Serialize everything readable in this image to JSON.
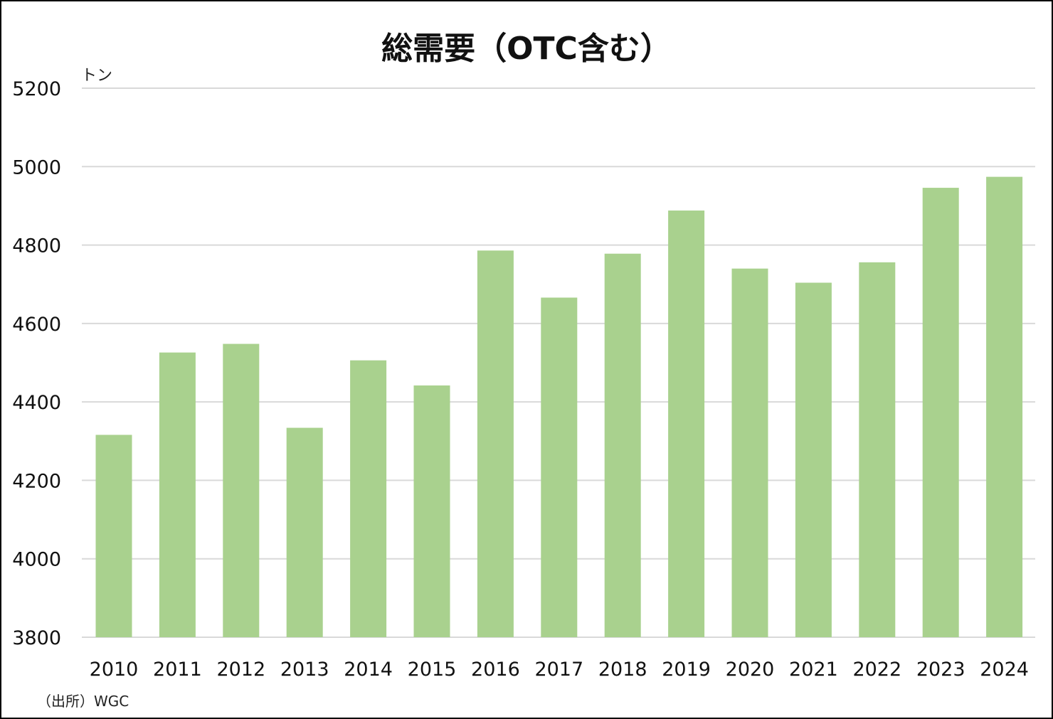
{
  "chart_data": {
    "type": "bar",
    "title": "総需要（OTC含む）",
    "ylabel": "トン",
    "xlabel": "",
    "source": "（出所）WGC",
    "categories": [
      "2010",
      "2011",
      "2012",
      "2013",
      "2014",
      "2015",
      "2016",
      "2017",
      "2018",
      "2019",
      "2020",
      "2021",
      "2022",
      "2023",
      "2024"
    ],
    "values": [
      4316,
      4526,
      4548,
      4334,
      4506,
      4442,
      4786,
      4666,
      4778,
      4888,
      4740,
      4704,
      4756,
      4946,
      4974
    ],
    "ylim": [
      3800,
      5200
    ],
    "yticks": [
      3800,
      4000,
      4200,
      4400,
      4600,
      4800,
      5000,
      5200
    ],
    "grid": true,
    "legend": "none",
    "bar_color": "#a9d18e",
    "grid_color": "#d9d9d9"
  }
}
